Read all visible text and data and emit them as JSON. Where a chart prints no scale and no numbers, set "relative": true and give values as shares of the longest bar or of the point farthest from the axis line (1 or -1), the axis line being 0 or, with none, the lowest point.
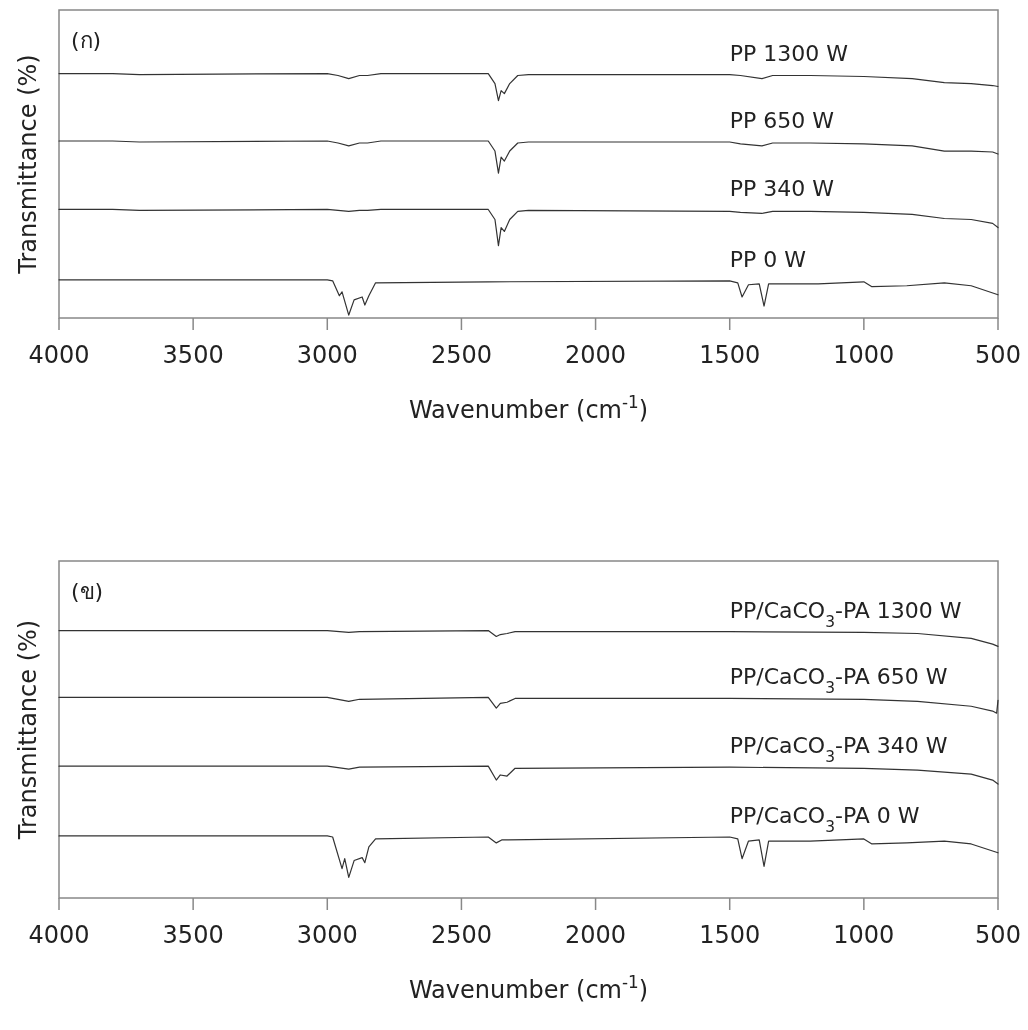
{
  "chart_data": [
    {
      "type": "line",
      "relative": true,
      "xlabel": "Wavenumber (cm$^{-1}$)",
      "ylabel": "Transmittance (%)",
      "annotations": [
        "(ก)"
      ],
      "xlim": [
        4000,
        500
      ],
      "xticks": [
        4000,
        3500,
        3000,
        2500,
        2000,
        1500,
        1000,
        500
      ],
      "series": [
        {
          "name": "PP 1300 W",
          "color": "#333333",
          "x": [
            4000,
            3800,
            3700,
            3000,
            2960,
            2920,
            2880,
            2850,
            2800,
            2400,
            2375,
            2362,
            2352,
            2340,
            2320,
            2290,
            2250,
            1500,
            1460,
            1380,
            1340,
            1200,
            1000,
            820,
            700,
            600,
            520,
            500
          ],
          "values": [
            1.0,
            1.0,
            0.996,
            1.0,
            0.992,
            0.979,
            0.992,
            0.992,
            1.0,
            1.0,
            0.959,
            0.889,
            0.93,
            0.918,
            0.959,
            0.992,
            0.996,
            0.996,
            0.992,
            0.979,
            0.992,
            0.992,
            0.988,
            0.979,
            0.963,
            0.959,
            0.951,
            0.947
          ]
        },
        {
          "name": "PP 650 W",
          "color": "#333333",
          "x": [
            4000,
            3800,
            3700,
            3000,
            2960,
            2920,
            2880,
            2850,
            2800,
            2400,
            2375,
            2362,
            2352,
            2340,
            2320,
            2290,
            2250,
            1500,
            1460,
            1380,
            1340,
            1200,
            1000,
            820,
            700,
            600,
            520,
            500
          ],
          "values": [
            0.724,
            0.724,
            0.72,
            0.724,
            0.716,
            0.704,
            0.716,
            0.716,
            0.724,
            0.724,
            0.683,
            0.593,
            0.658,
            0.642,
            0.683,
            0.716,
            0.72,
            0.72,
            0.712,
            0.704,
            0.716,
            0.716,
            0.712,
            0.704,
            0.683,
            0.683,
            0.679,
            0.671
          ]
        },
        {
          "name": "PP 340 W",
          "color": "#333333",
          "x": [
            4000,
            3800,
            3700,
            3000,
            2960,
            2920,
            2880,
            2850,
            2800,
            2400,
            2375,
            2362,
            2352,
            2340,
            2320,
            2290,
            2250,
            1500,
            1460,
            1380,
            1340,
            1200,
            1000,
            820,
            700,
            600,
            520,
            500
          ],
          "values": [
            0.444,
            0.444,
            0.44,
            0.444,
            0.44,
            0.436,
            0.44,
            0.44,
            0.444,
            0.444,
            0.403,
            0.296,
            0.37,
            0.354,
            0.403,
            0.436,
            0.44,
            0.436,
            0.432,
            0.428,
            0.436,
            0.436,
            0.432,
            0.424,
            0.407,
            0.403,
            0.387,
            0.37
          ]
        },
        {
          "name": "PP 0 W",
          "color": "#333333",
          "x": [
            4000,
            3000,
            2980,
            2955,
            2945,
            2920,
            2900,
            2870,
            2860,
            2845,
            2820,
            2400,
            1500,
            1470,
            1454,
            1430,
            1390,
            1372,
            1355,
            1170,
            1000,
            970,
            840,
            700,
            600,
            500
          ],
          "values": [
            0.156,
            0.156,
            0.152,
            0.091,
            0.107,
            0.012,
            0.074,
            0.086,
            0.053,
            0.091,
            0.144,
            0.148,
            0.152,
            0.144,
            0.086,
            0.136,
            0.14,
            0.049,
            0.14,
            0.14,
            0.148,
            0.128,
            0.132,
            0.144,
            0.132,
            0.095
          ]
        }
      ]
    },
    {
      "type": "line",
      "relative": true,
      "xlabel": "Wavenumber (cm$^{-1}$)",
      "ylabel": "Transmittance (%)",
      "annotations": [
        "(ข)"
      ],
      "xlim": [
        4000,
        500
      ],
      "xticks": [
        4000,
        3500,
        3000,
        2500,
        2000,
        1500,
        1000,
        500
      ],
      "series": [
        {
          "name": "PP/CaCO$_{3}$-PA 1300 W",
          "color": "#333333",
          "x": [
            4000,
            3000,
            2920,
            2880,
            2400,
            2370,
            2355,
            2330,
            2300,
            1500,
            1000,
            800,
            600,
            520,
            500
          ],
          "values": [
            1.0,
            1.0,
            0.993,
            0.996,
            1.0,
            0.978,
            0.985,
            0.989,
            0.996,
            0.996,
            0.993,
            0.989,
            0.971,
            0.949,
            0.941
          ]
        },
        {
          "name": "PP/CaCO$_{3}$-PA 650 W",
          "color": "#333333",
          "x": [
            4000,
            3000,
            2920,
            2880,
            2400,
            2370,
            2355,
            2330,
            2300,
            1500,
            1000,
            800,
            600,
            520,
            505,
            500
          ],
          "values": [
            0.75,
            0.75,
            0.735,
            0.743,
            0.75,
            0.71,
            0.728,
            0.732,
            0.746,
            0.746,
            0.743,
            0.735,
            0.717,
            0.699,
            0.691,
            0.739
          ]
        },
        {
          "name": "PP/CaCO$_{3}$-PA 340 W",
          "color": "#333333",
          "x": [
            4000,
            3000,
            2920,
            2880,
            2400,
            2370,
            2355,
            2330,
            2300,
            1500,
            1000,
            800,
            600,
            520,
            500
          ],
          "values": [
            0.493,
            0.493,
            0.482,
            0.489,
            0.493,
            0.441,
            0.46,
            0.456,
            0.485,
            0.489,
            0.485,
            0.478,
            0.463,
            0.441,
            0.426
          ]
        },
        {
          "name": "PP/CaCO$_{3}$-PA 0 W",
          "color": "#333333",
          "x": [
            4000,
            3000,
            2980,
            2945,
            2935,
            2920,
            2900,
            2870,
            2860,
            2845,
            2820,
            2400,
            2370,
            2350,
            1500,
            1470,
            1454,
            1430,
            1390,
            1372,
            1355,
            1200,
            1000,
            970,
            840,
            700,
            600,
            500
          ],
          "values": [
            0.232,
            0.232,
            0.228,
            0.11,
            0.147,
            0.077,
            0.14,
            0.151,
            0.132,
            0.191,
            0.221,
            0.228,
            0.206,
            0.217,
            0.228,
            0.221,
            0.147,
            0.213,
            0.217,
            0.118,
            0.213,
            0.213,
            0.221,
            0.202,
            0.206,
            0.213,
            0.202,
            0.169
          ]
        }
      ]
    }
  ]
}
